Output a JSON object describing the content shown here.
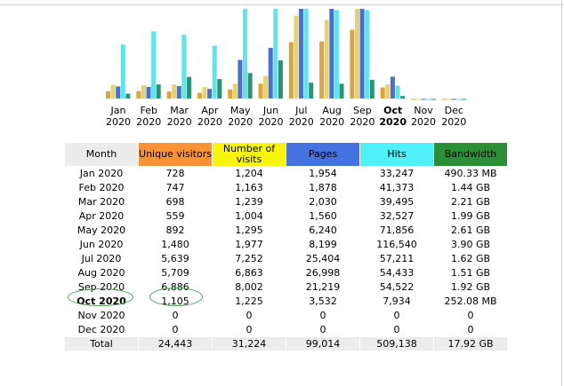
{
  "chart_data": {
    "type": "bar",
    "categories": [
      "Jan",
      "Feb",
      "Mar",
      "Apr",
      "May",
      "Jun",
      "Jul",
      "Aug",
      "Sep",
      "Oct",
      "Nov",
      "Dec"
    ],
    "years": [
      "2020",
      "2020",
      "2020",
      "2020",
      "2020",
      "2020",
      "2020",
      "2020",
      "2020",
      "2020",
      "2020",
      "2020"
    ],
    "current_index": 9,
    "series": [
      {
        "color": "#e0a23c",
        "values": [
          728,
          747,
          698,
          559,
          892,
          1480,
          5639,
          5709,
          6886,
          1105,
          0,
          0
        ]
      },
      {
        "color": "#e6d36a",
        "values": [
          1204,
          1163,
          1239,
          1004,
          1295,
          1977,
          7252,
          6863,
          8002,
          1225,
          0,
          0
        ]
      },
      {
        "color": "#4a6fd0",
        "values": [
          1954,
          1878,
          2030,
          1560,
          6240,
          8199,
          25404,
          26998,
          21219,
          3532,
          0,
          0
        ]
      },
      {
        "color": "#5ee4ec",
        "values": [
          33247,
          41373,
          39495,
          32527,
          71856,
          116540,
          57211,
          54433,
          54522,
          7934,
          0,
          0
        ]
      },
      {
        "color": "#2a9472",
        "values": [
          490.33,
          1440,
          2210,
          1990,
          2610,
          3900,
          1620,
          1510,
          1920,
          252.08,
          0,
          0
        ]
      }
    ]
  },
  "table": {
    "headers": {
      "month": "Month",
      "unique_visitors": "Unique visitors",
      "visits": "Number of visits",
      "pages": "Pages",
      "hits": "Hits",
      "bandwidth": "Bandwidth"
    },
    "rows": [
      {
        "month": "Jan 2020",
        "unique": "728",
        "visits": "1,204",
        "pages": "1,954",
        "hits": "33,247",
        "bandwidth": "490.33 MB"
      },
      {
        "month": "Feb 2020",
        "unique": "747",
        "visits": "1,163",
        "pages": "1,878",
        "hits": "41,373",
        "bandwidth": "1.44 GB"
      },
      {
        "month": "Mar 2020",
        "unique": "698",
        "visits": "1,239",
        "pages": "2,030",
        "hits": "39,495",
        "bandwidth": "2.21 GB"
      },
      {
        "month": "Apr 2020",
        "unique": "559",
        "visits": "1,004",
        "pages": "1,560",
        "hits": "32,527",
        "bandwidth": "1.99 GB"
      },
      {
        "month": "May 2020",
        "unique": "892",
        "visits": "1,295",
        "pages": "6,240",
        "hits": "71,856",
        "bandwidth": "2.61 GB"
      },
      {
        "month": "Jun 2020",
        "unique": "1,480",
        "visits": "1,977",
        "pages": "8,199",
        "hits": "116,540",
        "bandwidth": "3.90 GB"
      },
      {
        "month": "Jul 2020",
        "unique": "5,639",
        "visits": "7,252",
        "pages": "25,404",
        "hits": "57,211",
        "bandwidth": "1.62 GB"
      },
      {
        "month": "Aug 2020",
        "unique": "5,709",
        "visits": "6,863",
        "pages": "26,998",
        "hits": "54,433",
        "bandwidth": "1.51 GB"
      },
      {
        "month": "Sep 2020",
        "unique": "6,886",
        "visits": "8,002",
        "pages": "21,219",
        "hits": "54,522",
        "bandwidth": "1.92 GB"
      },
      {
        "month": "Oct 2020",
        "unique": "1,105",
        "visits": "1,225",
        "pages": "3,532",
        "hits": "7,934",
        "bandwidth": "252.08 MB"
      },
      {
        "month": "Nov 2020",
        "unique": "0",
        "visits": "0",
        "pages": "0",
        "hits": "0",
        "bandwidth": "0"
      },
      {
        "month": "Dec 2020",
        "unique": "0",
        "visits": "0",
        "pages": "0",
        "hits": "0",
        "bandwidth": "0"
      }
    ],
    "total": {
      "month": "Total",
      "unique": "24,443",
      "visits": "31,224",
      "pages": "99,014",
      "hits": "509,138",
      "bandwidth": "17.92 GB"
    }
  },
  "annotation_color": "#4aa052"
}
